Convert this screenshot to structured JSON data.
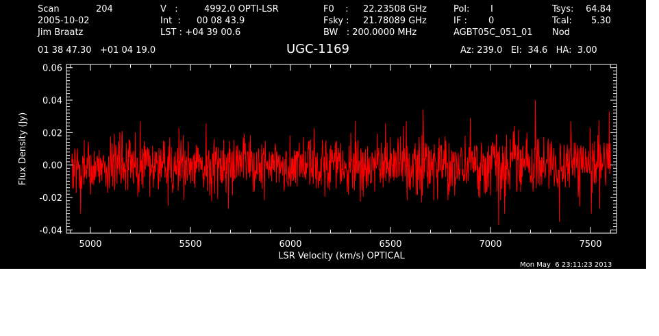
{
  "header": {
    "col1": [
      "Scan",
      "2005-10-02",
      "Jim Braatz"
    ],
    "col1b": [
      "204"
    ],
    "col2": [
      "V   :",
      "Int  :",
      "LST : +04 39 00.6"
    ],
    "col2b": [
      "4992.0 OPTI-LSR",
      "00 08 43.9"
    ],
    "col3": [
      "F0    :",
      "Fsky :",
      "BW   : 200.0000 MHz"
    ],
    "col3b": [
      "22.23508 GHz",
      "21.78089 GHz"
    ],
    "col4": [
      "Pol:",
      "IF :",
      "AGBT05C_051_01"
    ],
    "col4b": [
      "I",
      "0"
    ],
    "col5": [
      "Tsys:",
      "Tcal:",
      "Nod"
    ],
    "col5b": [
      "64.84",
      "5.30"
    ],
    "coords": "01 38 47.30   +01 04 19.0",
    "source": "UGC-1169",
    "azel": "Az: 239.0   El:  34.6   HA:  3.00"
  },
  "footer": {
    "timestamp": "Mon May  6 23:11:23 2013"
  },
  "colors": {
    "background": "#000000",
    "axes": "#ffffff",
    "trace": "#ff0000"
  },
  "chart_data": {
    "type": "line",
    "xlabel": "LSR Velocity (km/s) OPTICAL",
    "ylabel": "Flux Density (Jy)",
    "xlim": [
      4880,
      7630
    ],
    "ylim": [
      -0.042,
      0.062
    ],
    "xticks": [
      5000,
      5500,
      6000,
      6500,
      7000,
      7500
    ],
    "xtick_labels": [
      "5000",
      "5500",
      "6000",
      "6500",
      "7000",
      "7500"
    ],
    "yticks": [
      -0.04,
      -0.02,
      0.0,
      0.02,
      0.04,
      0.06
    ],
    "ytick_labels": [
      "-0.04",
      "-0.02",
      "0.00",
      "0.02",
      "0.04",
      "0.06"
    ],
    "series": [
      {
        "description": "noise-dominated spectrum",
        "x_start": 4905,
        "x_end": 7600,
        "n_points": 1350,
        "mean": 0.0,
        "rms": 0.009,
        "notable_values": [
          [
            7225,
            0.04
          ],
          [
            7595,
            0.033
          ],
          [
            4950,
            -0.03
          ],
          [
            5690,
            -0.027
          ],
          [
            7040,
            -0.037
          ],
          [
            7345,
            -0.035
          ],
          [
            7505,
            -0.03
          ]
        ]
      }
    ]
  }
}
